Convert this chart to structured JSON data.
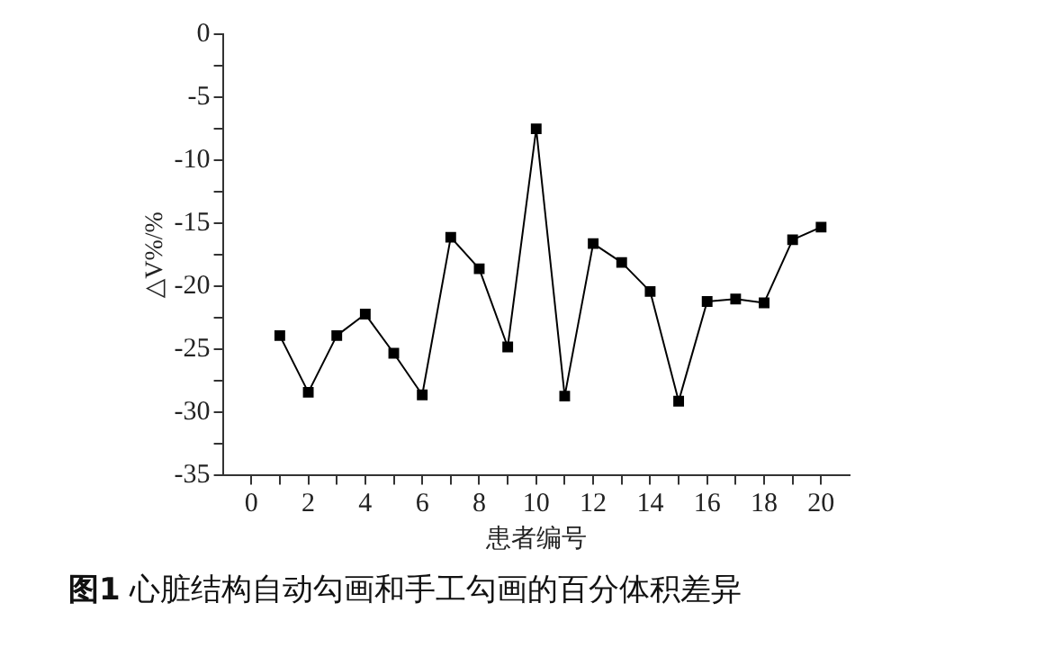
{
  "chart_data": {
    "type": "line",
    "title": "图1 心脏结构自动勾画和手工勾画的百分体积差异",
    "xlabel": "患者编号",
    "ylabel": "△V%/%",
    "x": [
      1,
      2,
      3,
      4,
      5,
      6,
      7,
      8,
      9,
      10,
      11,
      12,
      13,
      14,
      15,
      16,
      17,
      18,
      19,
      20
    ],
    "series": [
      {
        "color": "#000000",
        "values": [
          -23.9,
          -28.4,
          -23.9,
          -22.2,
          -25.3,
          -28.6,
          -16.1,
          -18.6,
          -24.8,
          -7.5,
          -28.7,
          -16.6,
          -18.1,
          -20.4,
          -29.1,
          -21.2,
          -21.0,
          -21.3,
          -16.3,
          -15.3
        ]
      }
    ],
    "xlim": [
      -1,
      21
    ],
    "xticks": [
      0,
      {
        "value": 1,
        "label": null
      },
      2,
      {
        "value": 3,
        "label": null
      },
      4,
      {
        "value": 5,
        "label": null
      },
      6,
      {
        "value": 7,
        "label": null
      },
      8,
      {
        "value": 9,
        "label": null
      },
      10,
      {
        "value": 11,
        "label": null
      },
      12,
      {
        "value": 13,
        "label": null
      },
      14,
      {
        "value": 15,
        "label": null
      },
      16,
      {
        "value": 17,
        "label": null
      },
      18,
      {
        "value": 19,
        "label": null
      },
      20
    ],
    "ylim": [
      -35,
      0
    ],
    "yticks": [
      -35,
      {
        "value": -32.5,
        "label": null
      },
      -30,
      {
        "value": -27.5,
        "label": null
      },
      -25,
      {
        "value": -22.5,
        "label": null
      },
      -20,
      {
        "value": -17.5,
        "label": null
      },
      -15,
      {
        "value": -12.5,
        "label": null
      },
      -10,
      {
        "value": -7.5,
        "label": null
      },
      -5,
      {
        "value": -2.5,
        "label": null
      },
      0
    ],
    "grid": false,
    "legend": false,
    "marker": "square",
    "line_style": "solid"
  }
}
